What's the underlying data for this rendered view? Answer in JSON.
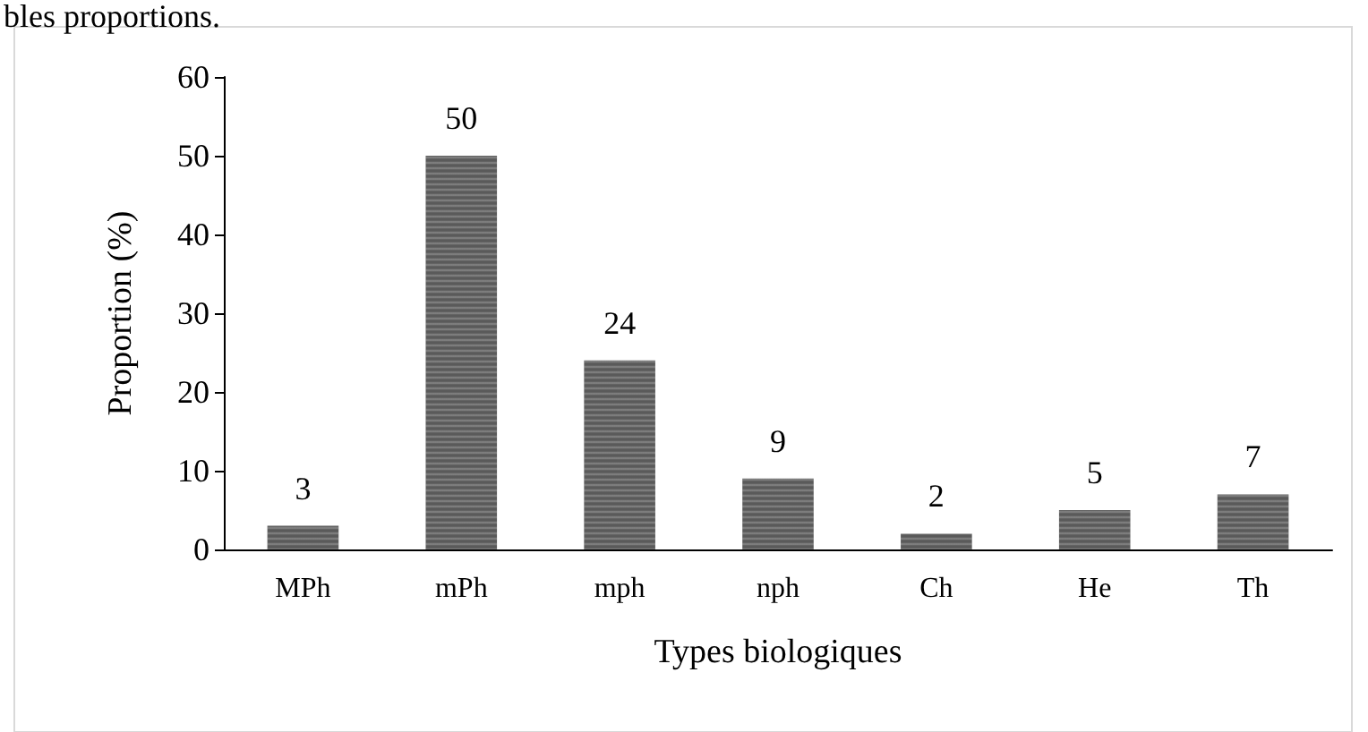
{
  "chart_data": {
    "type": "bar",
    "xlabel": "Types biologiques",
    "ylabel": "Proportion (%)",
    "categories": [
      "MPh",
      "mPh",
      "mph",
      "nph",
      "Ch",
      "He",
      "Th"
    ],
    "values": [
      3,
      50,
      24,
      9,
      2,
      5,
      7
    ],
    "color": "#5a5a5a",
    "ylim": [
      0,
      60
    ],
    "yticks": [
      0,
      10,
      20,
      30,
      40,
      50,
      60
    ],
    "grid": false,
    "data_labels": true,
    "annotations": [
      "bles proportions."
    ]
  }
}
